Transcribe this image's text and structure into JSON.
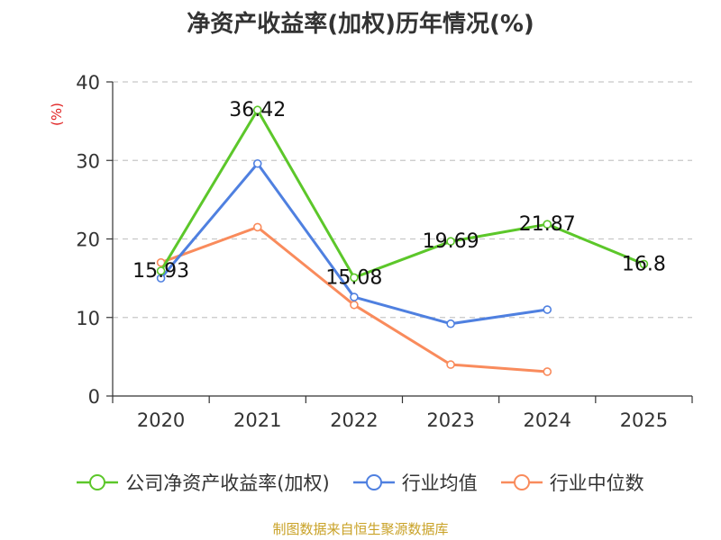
{
  "chart_data": {
    "type": "line",
    "title": "净资产收益率(加权)历年情况(%)",
    "ylabel": "(%)",
    "xlabel": "",
    "categories": [
      "2020",
      "2021",
      "2022",
      "2023",
      "2024",
      "2025"
    ],
    "ylim": [
      0,
      40
    ],
    "yticks": [
      0,
      10,
      20,
      30,
      40
    ],
    "grid": true,
    "legend_position": "bottom",
    "series": [
      {
        "name": "公司净资产收益率(加权)",
        "color": "#5cc72a",
        "values": [
          15.93,
          36.42,
          15.08,
          19.69,
          21.87,
          16.8
        ],
        "labels": [
          "15.93",
          "36.42",
          "15.08",
          "19.69",
          "21.87",
          "16.8"
        ]
      },
      {
        "name": "行业均值",
        "color": "#4f80e0",
        "values": [
          15.0,
          29.6,
          12.6,
          9.2,
          11.0,
          null
        ]
      },
      {
        "name": "行业中位数",
        "color": "#f98b5c",
        "values": [
          17.0,
          21.5,
          11.6,
          4.0,
          3.1,
          null
        ]
      }
    ]
  },
  "source": "制图数据来自恒生聚源数据库"
}
